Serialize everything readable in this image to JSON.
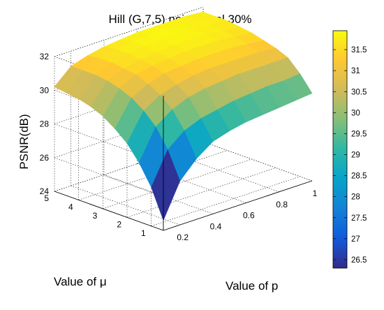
{
  "chart_data": {
    "type": "surface3d",
    "title": "Hill (G,7,5) noise level 30%",
    "xlabel": "Value of p",
    "ylabel": "Value of μ",
    "zlabel": "PSNR(dB)",
    "x_ticks": [
      "0.2",
      "0.4",
      "0.6",
      "0.8",
      "1"
    ],
    "y_ticks": [
      "1",
      "2",
      "3",
      "4",
      "5"
    ],
    "z_ticks": [
      "24",
      "26",
      "28",
      "30",
      "32"
    ],
    "xlim": [
      0.1,
      1.0
    ],
    "ylim": [
      0.5,
      5.0
    ],
    "zlim": [
      24,
      32
    ],
    "colorbar": {
      "ticks": [
        "26.5",
        "27",
        "27.5",
        "28",
        "28.5",
        "29",
        "29.5",
        "30",
        "30.5",
        "31",
        "31.5"
      ],
      "range": [
        26.3,
        31.95
      ],
      "colormap": "parula"
    },
    "grid": true,
    "p_values": [
      0.1,
      0.2,
      0.3,
      0.4,
      0.5,
      0.6,
      0.7,
      0.8,
      0.9,
      1.0
    ],
    "mu_values": [
      0.5,
      1.0,
      1.5,
      2.0,
      2.5,
      3.0,
      3.5,
      4.0,
      4.5,
      5.0
    ],
    "psnr": [
      [
        24.6,
        26.6,
        27.6,
        28.3,
        28.6,
        28.8,
        28.9,
        29.0,
        29.1,
        29.2
      ],
      [
        26.3,
        28.2,
        29.0,
        29.4,
        29.6,
        29.8,
        29.9,
        30.0,
        30.0,
        30.1
      ],
      [
        27.5,
        29.3,
        30.0,
        30.4,
        30.6,
        30.7,
        30.8,
        30.8,
        30.8,
        30.8
      ],
      [
        28.4,
        30.0,
        30.6,
        30.9,
        31.1,
        31.2,
        31.2,
        31.2,
        31.2,
        31.1
      ],
      [
        29.0,
        30.5,
        31.0,
        31.3,
        31.4,
        31.5,
        31.5,
        31.5,
        31.4,
        31.3
      ],
      [
        29.5,
        30.8,
        31.3,
        31.5,
        31.6,
        31.7,
        31.7,
        31.7,
        31.6,
        31.5
      ],
      [
        29.8,
        31.0,
        31.4,
        31.6,
        31.7,
        31.8,
        31.8,
        31.8,
        31.7,
        31.6
      ],
      [
        30.0,
        31.1,
        31.5,
        31.7,
        31.8,
        31.9,
        31.9,
        31.8,
        31.8,
        31.7
      ],
      [
        30.1,
        31.1,
        31.5,
        31.7,
        31.8,
        31.9,
        31.9,
        31.8,
        31.8,
        31.7
      ],
      [
        30.2,
        31.1,
        31.4,
        31.6,
        31.7,
        31.8,
        31.8,
        31.8,
        31.8,
        31.7
      ]
    ]
  }
}
